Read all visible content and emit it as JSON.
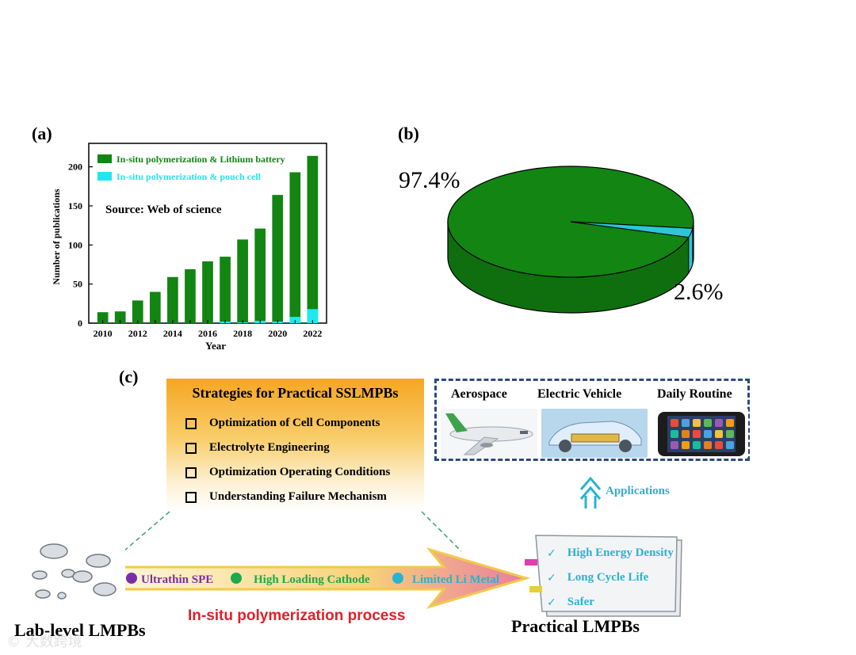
{
  "panel_a": {
    "label": "(a)",
    "source_text": "Source: Web of science",
    "legend": [
      "In-situ polymerization & Lithium battery",
      "In-situ polymerization & pouch cell"
    ],
    "colors": {
      "lithium": "#128512",
      "pouch": "#1ee8f0"
    }
  },
  "panel_b": {
    "label": "(b)",
    "big_pct": "97.4%",
    "small_pct": "2.6%",
    "colors": {
      "big": "#128512",
      "small": "#2ec5d6"
    }
  },
  "panel_c": {
    "label": "(c)",
    "strategies_title": "Strategies for Practical SSLMPBs",
    "strategies": [
      "Optimization of Cell Components",
      "Electrolyte Engineering",
      "Optimization Operating Conditions",
      "Understanding Failure Mechanism"
    ],
    "applications": [
      "Aerospace",
      "Electric Vehicle",
      "Daily Routine"
    ],
    "applications_arrow_label": "Applications",
    "arrow_items": [
      "Ultrathin SPE",
      "High Loading Cathode",
      "Limited Li Metal"
    ],
    "arrow_item_colors": [
      "#7a2fa8",
      "#1fa84f",
      "#2ab3cf"
    ],
    "process_label": "In-situ polymerization process",
    "lab_label": "Lab-level LMPBs",
    "practical_label": "Practical LMPBs",
    "battery_features": [
      "High Energy Density",
      "Long Cycle Life",
      "Safer"
    ]
  },
  "watermark": "© 大数跨境",
  "chart_data": [
    {
      "type": "bar",
      "categories": [
        "2010",
        "2011",
        "2012",
        "2013",
        "2014",
        "2015",
        "2016",
        "2017",
        "2018",
        "2019",
        "2020",
        "2021",
        "2022"
      ],
      "series": [
        {
          "name": "In-situ polymerization & Lithium battery",
          "values": [
            14,
            15,
            29,
            40,
            59,
            69,
            79,
            85,
            107,
            121,
            164,
            193,
            214
          ]
        },
        {
          "name": "In-situ polymerization & pouch cell",
          "values": [
            0,
            0,
            0,
            0,
            0,
            0,
            0,
            2,
            1,
            3,
            2,
            8,
            18
          ]
        }
      ],
      "xlabel": "Year",
      "ylabel": "Number of publications",
      "x_tick_labels": [
        "2010",
        "2012",
        "2014",
        "2016",
        "2018",
        "2020",
        "2022"
      ],
      "y_ticks": [
        0,
        50,
        100,
        150,
        200
      ],
      "ylim": [
        0,
        230
      ],
      "legend": "top-left"
    },
    {
      "type": "pie",
      "labels": [
        "",
        ""
      ],
      "values": [
        97.4,
        2.6
      ],
      "value_labels": [
        "97.4%",
        "2.6%"
      ]
    }
  ]
}
